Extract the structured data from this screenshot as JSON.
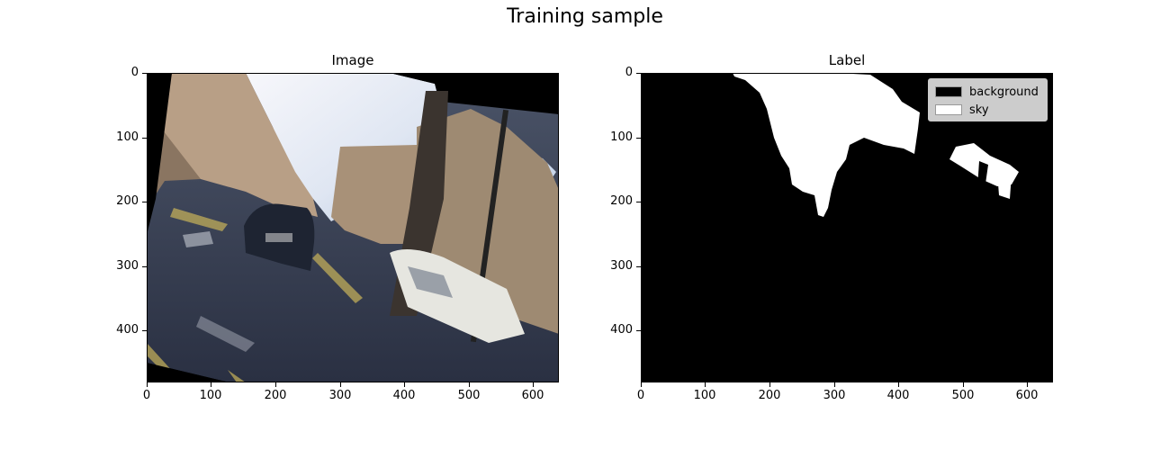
{
  "figure": {
    "suptitle": "Training sample"
  },
  "panels": [
    {
      "title": "Image",
      "xticks": [
        "0",
        "100",
        "200",
        "300",
        "400",
        "500",
        "600"
      ],
      "yticks": [
        "0",
        "100",
        "200",
        "300",
        "400"
      ]
    },
    {
      "title": "Label",
      "xticks": [
        "0",
        "100",
        "200",
        "300",
        "400",
        "500",
        "600"
      ],
      "yticks": [
        "0",
        "100",
        "200",
        "300",
        "400"
      ],
      "legend": [
        {
          "label": "background",
          "color": "#000000"
        },
        {
          "label": "sky",
          "color": "#ffffff"
        }
      ]
    }
  ]
}
